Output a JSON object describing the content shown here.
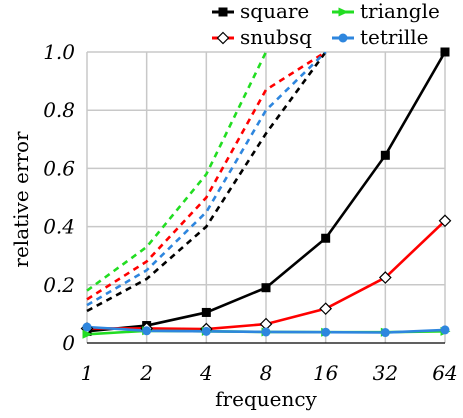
{
  "chart_data": {
    "type": "line",
    "xlabel": "frequency",
    "ylabel": "relative error",
    "x": [
      1,
      2,
      4,
      8,
      16,
      32,
      64
    ],
    "x_scale": "log2",
    "x_tick_labels": [
      "1",
      "2",
      "4",
      "8",
      "16",
      "32",
      "64"
    ],
    "ylim": [
      0,
      1.0
    ],
    "y_ticks": [
      0,
      0.2,
      0.4,
      0.6,
      0.8,
      1.0
    ],
    "y_tick_labels": [
      "0",
      "0.2",
      "0.4",
      "0.6",
      "0.8",
      "1.0"
    ],
    "grid": true,
    "legend_placement": "top",
    "series": [
      {
        "name": "square",
        "color": "#000000",
        "marker": "square",
        "solid": [
          0.04,
          0.06,
          0.105,
          0.19,
          0.36,
          0.645,
          1.0
        ],
        "dashed": [
          0.11,
          0.22,
          0.4,
          0.72,
          1.0,
          null,
          null
        ]
      },
      {
        "name": "snubsq",
        "color": "#ff0000",
        "marker": "diamond",
        "solid": [
          0.05,
          0.05,
          0.048,
          0.065,
          0.118,
          0.225,
          0.42
        ],
        "dashed": [
          0.15,
          0.28,
          0.5,
          0.87,
          1.0,
          null,
          null
        ]
      },
      {
        "name": "triangle",
        "color": "#22dd22",
        "marker": "triangle",
        "solid": [
          0.03,
          0.042,
          0.04,
          0.038,
          0.037,
          0.037,
          0.04
        ],
        "dashed": [
          0.18,
          0.33,
          0.58,
          1.0,
          null,
          null,
          null
        ]
      },
      {
        "name": "tetrille",
        "color": "#2e86de",
        "marker": "circle",
        "solid": [
          0.055,
          0.042,
          0.04,
          0.038,
          0.037,
          0.036,
          0.045
        ],
        "dashed": [
          0.13,
          0.25,
          0.45,
          0.8,
          1.0,
          null,
          null
        ]
      }
    ]
  }
}
